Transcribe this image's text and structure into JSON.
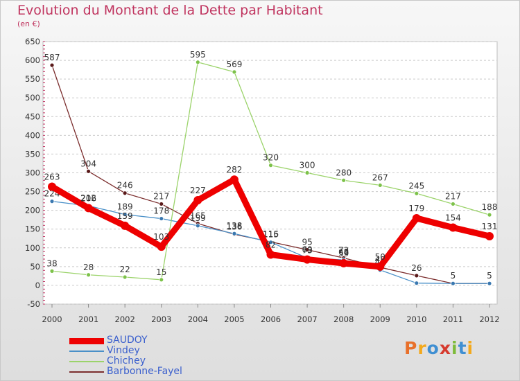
{
  "title": "Evolution du Montant de la Dette par Habitant",
  "subtitle": "(en €)",
  "logo": {
    "text": "Proxiti",
    "colors": [
      "#e8702a",
      "#f3a91c",
      "#3f8fd2",
      "#d63a2e",
      "#7dbb3a",
      "#3f8fd2",
      "#f3a91c"
    ]
  },
  "chart_data": {
    "type": "line",
    "x": [
      2000,
      2001,
      2002,
      2003,
      2004,
      2005,
      2006,
      2007,
      2008,
      2009,
      2010,
      2011,
      2012
    ],
    "ylim": [
      -50,
      650
    ],
    "yticks": [
      -50,
      0,
      50,
      100,
      150,
      200,
      250,
      300,
      350,
      400,
      450,
      500,
      550,
      600,
      650
    ],
    "xlabel": "",
    "ylabel": "",
    "grid": "horizontal dashed",
    "legend_placement": "bottom-left",
    "series": [
      {
        "name": "Barbonne-Fayel",
        "color": "#7b2d2d",
        "point_color": "#5a1a1a",
        "values": [
          587,
          304,
          246,
          217,
          165,
          136,
          116,
          95,
          73,
          48,
          26,
          5,
          5
        ],
        "labels": [
          "587",
          "304",
          "246",
          "217",
          "165",
          "136",
          "116",
          "95",
          "73",
          "48",
          "26",
          "5",
          "5"
        ]
      },
      {
        "name": "Vindey",
        "color": "#4a90c8",
        "point_color": "#3a78b0",
        "values": [
          224,
          212,
          189,
          178,
          159,
          138,
          115,
          73,
          68,
          41,
          6,
          5,
          5
        ],
        "labels": [
          "224",
          "212",
          "189",
          "178",
          "159",
          "138",
          "115",
          "73",
          "68",
          "41",
          "",
          "",
          ""
        ]
      },
      {
        "name": "Chichey",
        "color": "#9bd36a",
        "point_color": "#7dc24a",
        "values": [
          38,
          28,
          22,
          15,
          595,
          569,
          320,
          300,
          280,
          267,
          245,
          217,
          188
        ],
        "labels": [
          "38",
          "28",
          "22",
          "15",
          "595",
          "569",
          "320",
          "300",
          "280",
          "267",
          "245",
          "217",
          "188"
        ]
      },
      {
        "name": "SAUDOY",
        "color": "#ee0000",
        "point_color": "#ee0000",
        "values": [
          263,
          206,
          159,
          103,
          227,
          282,
          82,
          69,
          59,
          50,
          179,
          154,
          131
        ],
        "labels": [
          "263",
          "206",
          "159",
          "103",
          "227",
          "282",
          "82",
          "69",
          "59",
          "50",
          "179",
          "154",
          "131"
        ]
      }
    ],
    "legend": [
      {
        "name": "SAUDOY",
        "color": "#ee0000",
        "thickness": 9
      },
      {
        "name": "Vindey",
        "color": "#4a90c8",
        "thickness": 2
      },
      {
        "name": "Chichey",
        "color": "#9bd36a",
        "thickness": 2
      },
      {
        "name": "Barbonne-Fayel",
        "color": "#7b2d2d",
        "thickness": 2
      }
    ]
  }
}
